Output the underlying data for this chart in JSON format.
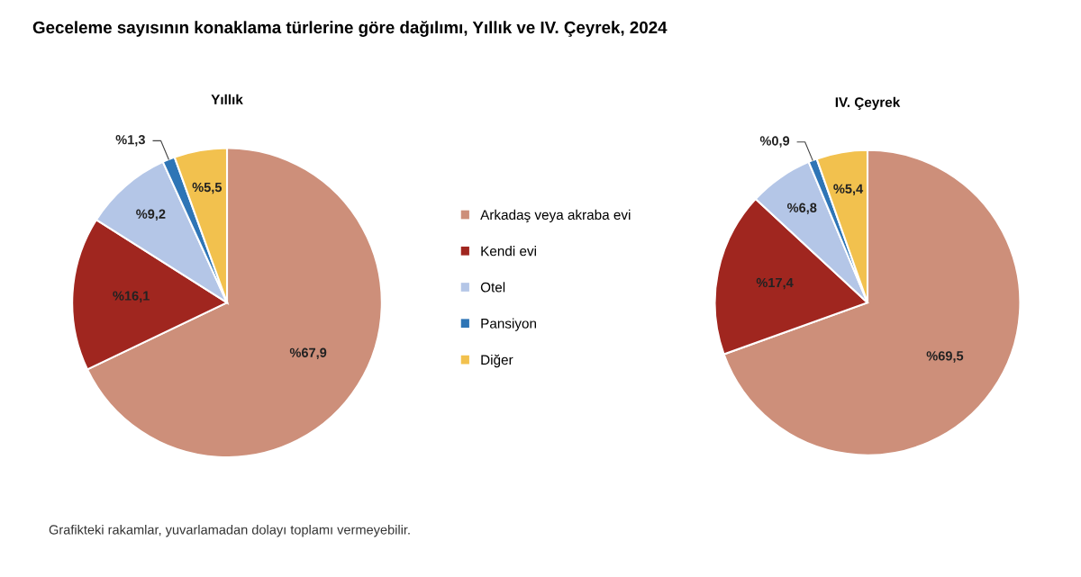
{
  "chart_data": [
    {
      "type": "pie",
      "title": "Yıllık",
      "annotations": [
        "Geceleme sayısının konaklama türlerine göre dağılımı, Yıllık ve IV. Çeyrek, 2024",
        "Grafikteki rakamlar, yuvarlamadan dolayı toplamı vermeyebilir."
      ],
      "categories": [
        "Arkadaş veya akraba evi",
        "Kendi evi",
        "Otel",
        "Pansiyon",
        "Diğer"
      ],
      "values": [
        67.9,
        16.1,
        9.2,
        1.3,
        5.5
      ],
      "value_labels": [
        "%67,9",
        "%16,1",
        "%9,2",
        "%1,3",
        "%5,5"
      ],
      "colors": [
        "#cd8f7a",
        "#a0261f",
        "#b4c6e7",
        "#2e75b6",
        "#f2c14e"
      ],
      "legend": "right"
    },
    {
      "type": "pie",
      "title": "IV. Çeyrek",
      "categories": [
        null,
        null,
        null,
        null,
        null
      ],
      "values": [
        69.5,
        17.4,
        6.8,
        0.9,
        5.4
      ],
      "value_labels": [
        "%69,5",
        "%17,4",
        "%6,8",
        "%0,9",
        "%5,4"
      ],
      "colors": [
        "#cd8f7a",
        "#a0261f",
        "#b4c6e7",
        "#2e75b6",
        "#f2c14e"
      ]
    }
  ]
}
